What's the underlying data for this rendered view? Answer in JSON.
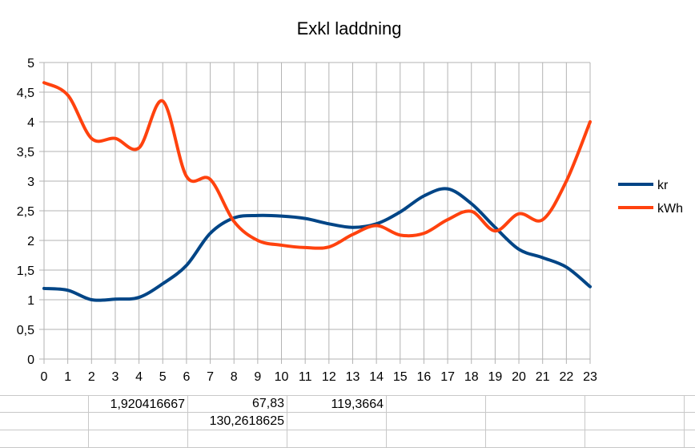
{
  "chart_data": {
    "type": "line",
    "title": "Exkl laddning",
    "xlabel": "",
    "ylabel": "",
    "categories": [
      "0",
      "1",
      "2",
      "3",
      "4",
      "5",
      "6",
      "7",
      "8",
      "9",
      "10",
      "11",
      "12",
      "13",
      "14",
      "15",
      "16",
      "17",
      "18",
      "19",
      "20",
      "21",
      "22",
      "23"
    ],
    "ylim": [
      0,
      5
    ],
    "yticks": [
      "0",
      "0,5",
      "1",
      "1,5",
      "2",
      "2,5",
      "3",
      "3,5",
      "4",
      "4,5",
      "5"
    ],
    "grid": true,
    "smooth": true,
    "legend_position": "right",
    "series": [
      {
        "name": "kr",
        "color": "#004586",
        "values": [
          1.19,
          1.16,
          1.0,
          1.01,
          1.04,
          1.27,
          1.58,
          2.12,
          2.38,
          2.42,
          2.41,
          2.37,
          2.28,
          2.22,
          2.28,
          2.48,
          2.75,
          2.87,
          2.62,
          2.22,
          1.85,
          1.71,
          1.55,
          1.22
        ]
      },
      {
        "name": "kWh",
        "color": "#ff420e",
        "values": [
          4.66,
          4.45,
          3.72,
          3.72,
          3.56,
          4.35,
          3.08,
          3.03,
          2.32,
          2.0,
          1.92,
          1.88,
          1.89,
          2.1,
          2.25,
          2.09,
          2.12,
          2.35,
          2.49,
          2.16,
          2.45,
          2.35,
          3.0,
          4.0
        ]
      }
    ]
  },
  "sheet": {
    "row1": {
      "c": "1,920416667",
      "e": "67,83",
      "f": "119,3664"
    },
    "row2": {
      "d": "130,2618625"
    }
  }
}
